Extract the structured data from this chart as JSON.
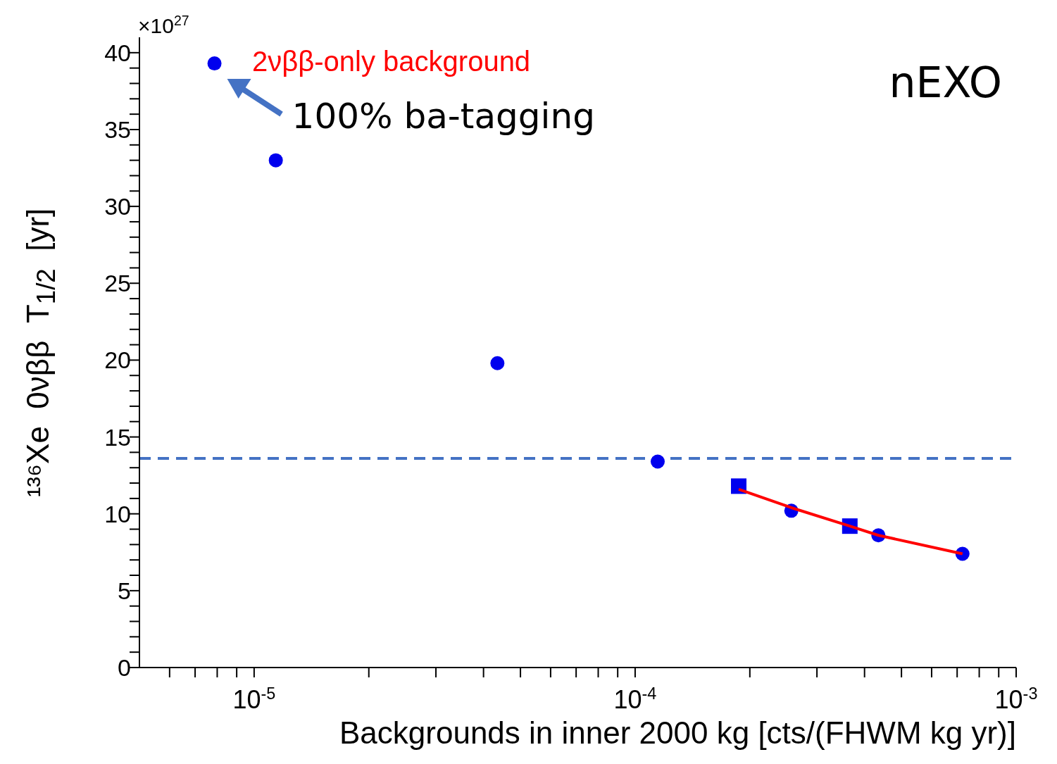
{
  "chart_data": {
    "type": "scatter",
    "xlabel": "Backgrounds in inner 2000 kg [cts/(FHWM kg yr)]",
    "ylabel": "¹³⁶Xe  0νββ  T$_{1/2}$  [yr]",
    "log": "x",
    "grid": false,
    "legend": false,
    "xlim": [
      5e-06,
      0.001
    ],
    "xticks": [
      {
        "value": 6e-06,
        "label": null
      },
      {
        "value": 7e-06,
        "label": null
      },
      {
        "value": 8e-06,
        "label": null
      },
      {
        "value": 9e-06,
        "label": null
      },
      {
        "value": 1e-05,
        "label": "10$^{-5}$"
      },
      {
        "value": 2e-05,
        "label": null
      },
      {
        "value": 3e-05,
        "label": null
      },
      {
        "value": 4e-05,
        "label": null
      },
      {
        "value": 5e-05,
        "label": null
      },
      {
        "value": 6e-05,
        "label": null
      },
      {
        "value": 7e-05,
        "label": null
      },
      {
        "value": 8e-05,
        "label": null
      },
      {
        "value": 9e-05,
        "label": null
      },
      {
        "value": 0.0001,
        "label": "10$^{-4}$"
      },
      {
        "value": 0.0002,
        "label": null
      },
      {
        "value": 0.0003,
        "label": null
      },
      {
        "value": 0.0004,
        "label": null
      },
      {
        "value": 0.0005,
        "label": null
      },
      {
        "value": 0.0006,
        "label": null
      },
      {
        "value": 0.0007,
        "label": null
      },
      {
        "value": 0.0008,
        "label": null
      },
      {
        "value": 0.0009,
        "label": null
      },
      {
        "value": 0.001,
        "label": "10$^{-3}$"
      }
    ],
    "ylim": [
      0,
      41
    ],
    "yticks": [
      0,
      {
        "value": 1,
        "label": null
      },
      {
        "value": 2,
        "label": null
      },
      {
        "value": 3,
        "label": null
      },
      {
        "value": 4,
        "label": null
      },
      5,
      {
        "value": 6,
        "label": null
      },
      {
        "value": 7,
        "label": null
      },
      {
        "value": 8,
        "label": null
      },
      {
        "value": 9,
        "label": null
      },
      10,
      {
        "value": 11,
        "label": null
      },
      {
        "value": 12,
        "label": null
      },
      {
        "value": 13,
        "label": null
      },
      {
        "value": 14,
        "label": null
      },
      15,
      {
        "value": 16,
        "label": null
      },
      {
        "value": 17,
        "label": null
      },
      {
        "value": 18,
        "label": null
      },
      {
        "value": 19,
        "label": null
      },
      20,
      {
        "value": 21,
        "label": null
      },
      {
        "value": 22,
        "label": null
      },
      {
        "value": 23,
        "label": null
      },
      {
        "value": 24,
        "label": null
      },
      25,
      {
        "value": 26,
        "label": null
      },
      {
        "value": 27,
        "label": null
      },
      {
        "value": 28,
        "label": null
      },
      {
        "value": 29,
        "label": null
      },
      30,
      {
        "value": 31,
        "label": null
      },
      {
        "value": 32,
        "label": null
      },
      {
        "value": 33,
        "label": null
      },
      {
        "value": 34,
        "label": null
      },
      35,
      {
        "value": 36,
        "label": null
      },
      {
        "value": 37,
        "label": null
      },
      {
        "value": 38,
        "label": null
      },
      {
        "value": 39,
        "label": null
      },
      40
    ],
    "series": [
      {
        "type": "scatter",
        "color": "#0000ee",
        "marker": "circle",
        "x": [
          7.87e-06,
          1.14e-05,
          4.35e-05,
          0.0001146,
          0.000257,
          0.000435,
          0.000723
        ],
        "values": [
          39.3,
          33.0,
          19.8,
          13.4,
          10.2,
          8.6,
          7.4
        ]
      },
      {
        "type": "scatter",
        "color": "#0000ee",
        "marker": "square",
        "x": [
          0.000187,
          0.000366
        ],
        "values": [
          11.8,
          9.2
        ]
      },
      {
        "type": "line",
        "name": "2νββ-only background",
        "color": "#ff0000",
        "marker": "none",
        "line_style": "solid",
        "x": [
          0.000187,
          0.000257,
          0.000366,
          0.000435,
          0.000723
        ],
        "values": [
          11.6,
          10.4,
          9.2,
          8.6,
          7.4
        ]
      }
    ],
    "ref_lines": [
      {
        "axis": "y",
        "value": 13.6,
        "color": "#4472c4",
        "line_style": "dashed"
      }
    ],
    "annotations": [
      {
        "text": "100% ba-tagging",
        "x": 7.87e-06,
        "y": 39.3
      },
      "nEXO",
      "×10$^{27}$"
    ]
  }
}
